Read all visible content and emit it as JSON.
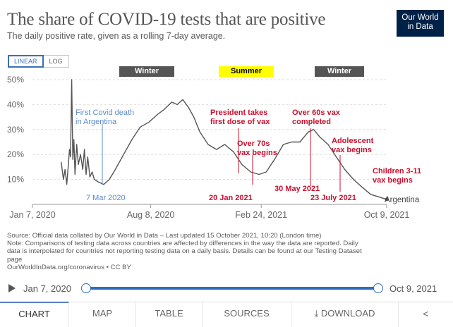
{
  "header": {
    "title": "The share of COVID-19 tests that are positive",
    "subtitle": "The daily positive rate, given as a rolling 7-day average.",
    "logo_line1": "Our World",
    "logo_line2": "in Data"
  },
  "scale_toggle": {
    "linear": "LINEAR",
    "log": "LOG"
  },
  "seasons": [
    {
      "label": "Winter",
      "style": "winter"
    },
    {
      "label": "Summer",
      "style": "summer"
    },
    {
      "label": "Winter",
      "style": "winter"
    }
  ],
  "colors": {
    "line": "#555555",
    "blue_annotation": "#5b8cc9",
    "red_annotation": "#c8102e",
    "accent": "#2e6bc0",
    "logo_bg": "#002147",
    "summer": "#ffff00",
    "winter": "#555555"
  },
  "chart_data": {
    "type": "line",
    "title": "The share of COVID-19 tests that are positive",
    "subtitle": "The daily positive rate, given as a rolling 7-day average.",
    "x_tick_labels": [
      "Jan 7, 2020",
      "Aug 8, 2020",
      "Feb 24, 2021",
      "Oct 9, 2021"
    ],
    "y_tick_labels": [
      "10%",
      "20%",
      "30%",
      "40%",
      "50%"
    ],
    "ylim": [
      0,
      50
    ],
    "xlim": [
      "2020-01-07",
      "2021-10-09"
    ],
    "grid": true,
    "series": [
      {
        "name": "Argentina",
        "points": [
          [
            "2020-02-28",
            17
          ],
          [
            "2020-03-03",
            10
          ],
          [
            "2020-03-06",
            14
          ],
          [
            "2020-03-09",
            8
          ],
          [
            "2020-03-12",
            16
          ],
          [
            "2020-03-14",
            22
          ],
          [
            "2020-03-16",
            19
          ],
          [
            "2020-03-18",
            50
          ],
          [
            "2020-03-20",
            18
          ],
          [
            "2020-03-22",
            26
          ],
          [
            "2020-03-24",
            12
          ],
          [
            "2020-03-27",
            24
          ],
          [
            "2020-03-30",
            16
          ],
          [
            "2020-04-03",
            20
          ],
          [
            "2020-04-07",
            14
          ],
          [
            "2020-04-10",
            22
          ],
          [
            "2020-04-13",
            12
          ],
          [
            "2020-04-16",
            19
          ],
          [
            "2020-04-20",
            11
          ],
          [
            "2020-04-24",
            13
          ],
          [
            "2020-04-28",
            10
          ],
          [
            "2020-05-05",
            9
          ],
          [
            "2020-05-15",
            8
          ],
          [
            "2020-05-25",
            10
          ],
          [
            "2020-06-05",
            14
          ],
          [
            "2020-06-20",
            20
          ],
          [
            "2020-07-05",
            26
          ],
          [
            "2020-07-20",
            31
          ],
          [
            "2020-08-05",
            33
          ],
          [
            "2020-08-20",
            36
          ],
          [
            "2020-09-01",
            38
          ],
          [
            "2020-09-15",
            41
          ],
          [
            "2020-09-25",
            40
          ],
          [
            "2020-10-05",
            42
          ],
          [
            "2020-10-15",
            39
          ],
          [
            "2020-10-25",
            35
          ],
          [
            "2020-11-05",
            29
          ],
          [
            "2020-11-20",
            24
          ],
          [
            "2020-12-05",
            22
          ],
          [
            "2020-12-20",
            24
          ],
          [
            "2021-01-05",
            21
          ],
          [
            "2021-01-20",
            16
          ],
          [
            "2021-02-05",
            13
          ],
          [
            "2021-02-20",
            12
          ],
          [
            "2021-03-05",
            13
          ],
          [
            "2021-03-20",
            18
          ],
          [
            "2021-04-05",
            24
          ],
          [
            "2021-04-20",
            25
          ],
          [
            "2021-05-05",
            25
          ],
          [
            "2021-05-20",
            29
          ],
          [
            "2021-05-30",
            30
          ],
          [
            "2021-06-10",
            27
          ],
          [
            "2021-06-25",
            24
          ],
          [
            "2021-07-10",
            19
          ],
          [
            "2021-07-25",
            14
          ],
          [
            "2021-08-10",
            10
          ],
          [
            "2021-08-25",
            7
          ],
          [
            "2021-09-10",
            4
          ],
          [
            "2021-09-25",
            3
          ],
          [
            "2021-10-09",
            2
          ]
        ]
      }
    ],
    "annotations": [
      {
        "text": [
          "First Covid death",
          "in Argentina"
        ],
        "color": "blue"
      },
      {
        "text": [
          "7 Mar 2020"
        ],
        "color": "blue"
      },
      {
        "text": [
          "President takes",
          "first dose of vax"
        ],
        "color": "red"
      },
      {
        "text": [
          "Over 70s",
          "vax begins"
        ],
        "color": "red"
      },
      {
        "text": [
          "20 Jan 2021"
        ],
        "color": "red"
      },
      {
        "text": [
          "Over 60s vax",
          "completed"
        ],
        "color": "red"
      },
      {
        "text": [
          "30 May 2021"
        ],
        "color": "red"
      },
      {
        "text": [
          "Adolescent",
          "vax begins"
        ],
        "color": "red"
      },
      {
        "text": [
          "23 July 2021"
        ],
        "color": "red"
      },
      {
        "text": [
          "Children 3-11",
          "vax begins"
        ],
        "color": "red"
      }
    ]
  },
  "footer": {
    "source": "Source: Official data collated by Our World in Data – Last updated 15 October 2021, 10:20 (London time)",
    "note_lines": [
      "Note: Comparisons of testing data across countries are affected by differences in the way the data are reported. Daily",
      "data is interpolated for countries not reporting testing data on a daily basis. Details can be found at our Testing Dataset",
      "page"
    ],
    "link": "OurWorldInData.org/coronavirus • CC BY"
  },
  "timeline": {
    "start": "Jan 7, 2020",
    "end": "Oct 9, 2021"
  },
  "tabs": {
    "chart": "CHART",
    "map": "MAP",
    "table": "TABLE",
    "sources": "SOURCES",
    "download": "DOWNLOAD",
    "share": "⋖"
  }
}
